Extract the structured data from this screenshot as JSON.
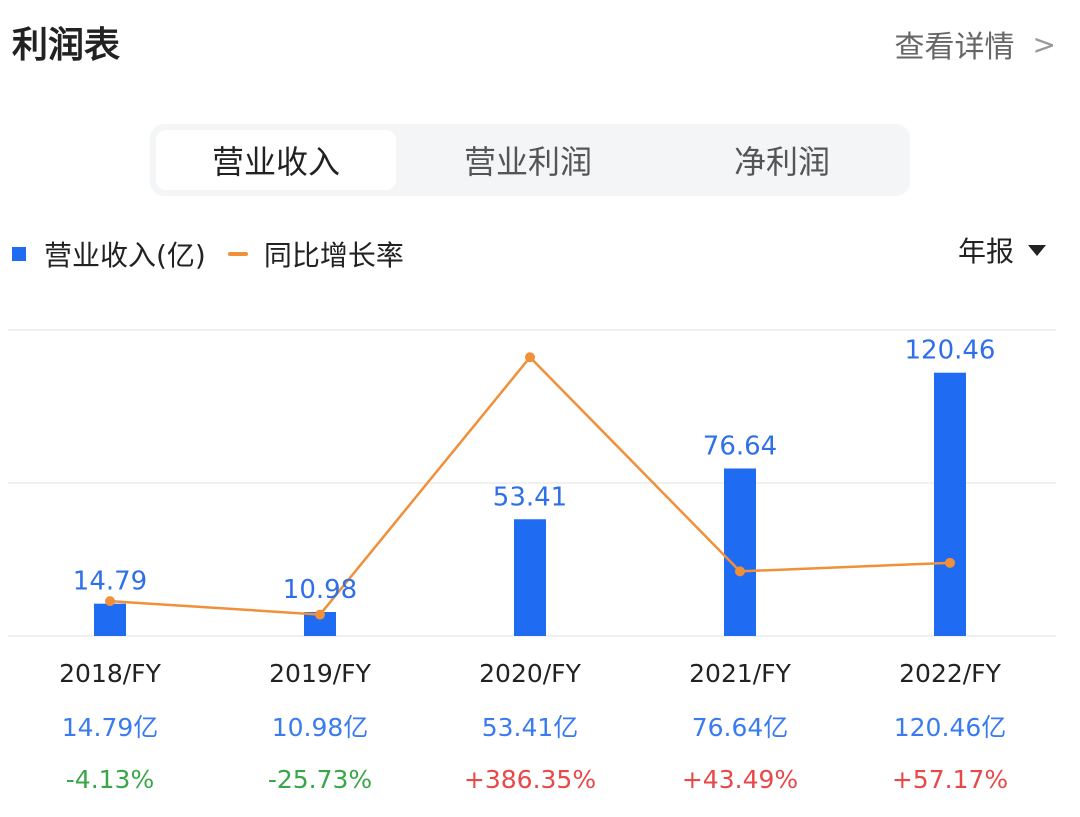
{
  "header": {
    "title": "利润表",
    "detail_link": "查看详情",
    "chevron_icon": "chevron-right-icon"
  },
  "tabs": [
    {
      "label": "营业收入",
      "active": true
    },
    {
      "label": "营业利润",
      "active": false
    },
    {
      "label": "净利润",
      "active": false
    }
  ],
  "legend": {
    "bar_label": "营业收入(亿)",
    "line_label": "同比增长率"
  },
  "period_select": {
    "value": "年报",
    "icon": "caret-down-icon"
  },
  "colors": {
    "bar": "#1f6bf2",
    "line": "#f0903a",
    "positive": "#e84848",
    "negative": "#3aa64a",
    "value_text": "#3a7bf0"
  },
  "chart_data": {
    "type": "bar",
    "categories": [
      "2018/FY",
      "2019/FY",
      "2020/FY",
      "2021/FY",
      "2022/FY"
    ],
    "series": [
      {
        "name": "营业收入(亿)",
        "type": "bar",
        "values": [
          14.79,
          10.98,
          53.41,
          76.64,
          120.46
        ],
        "value_labels": [
          "14.79",
          "10.98",
          "53.41",
          "76.64",
          "120.46"
        ]
      },
      {
        "name": "同比增长率",
        "type": "line",
        "values": [
          -4.13,
          -25.73,
          386.35,
          43.49,
          57.17
        ]
      }
    ],
    "table_rows": {
      "revenue": [
        "14.79亿",
        "10.98亿",
        "53.41亿",
        "76.64亿",
        "120.46亿"
      ],
      "growth": [
        "-4.13%",
        "-25.73%",
        "+386.35%",
        "+43.49%",
        "+57.17%"
      ]
    },
    "grid": true,
    "legend_position": "top-left"
  }
}
